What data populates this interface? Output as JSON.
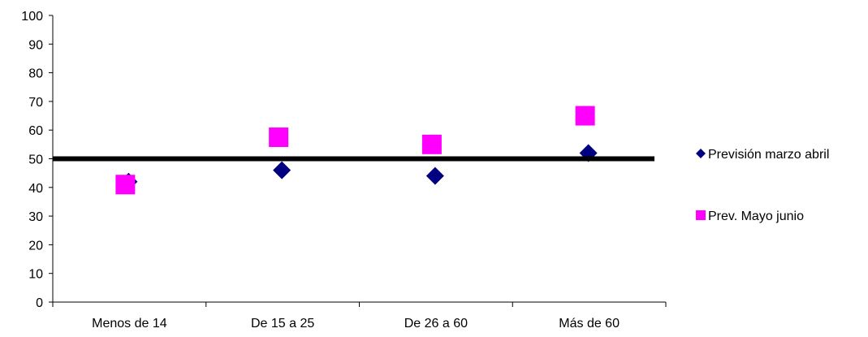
{
  "chart_data": {
    "type": "scatter",
    "categories": [
      "Menos de 14",
      "De 15 a 25",
      "De 26 a 60",
      "Más de 60"
    ],
    "series": [
      {
        "name": "Previsión marzo abril",
        "values": [
          42,
          46,
          44,
          52
        ],
        "color": "#000080",
        "marker": "diamond"
      },
      {
        "name": "Prev. Mayo junio",
        "values": [
          41,
          57.5,
          55,
          65
        ],
        "color": "#FF00FF",
        "marker": "square"
      }
    ],
    "reference_line": {
      "value": 50,
      "color": "#000000"
    },
    "ylim": [
      0,
      100
    ],
    "yticks": [
      0,
      10,
      20,
      30,
      40,
      50,
      60,
      70,
      80,
      90,
      100
    ],
    "grid": false,
    "legend_position": "right",
    "title": "",
    "xlabel": "",
    "ylabel": ""
  }
}
